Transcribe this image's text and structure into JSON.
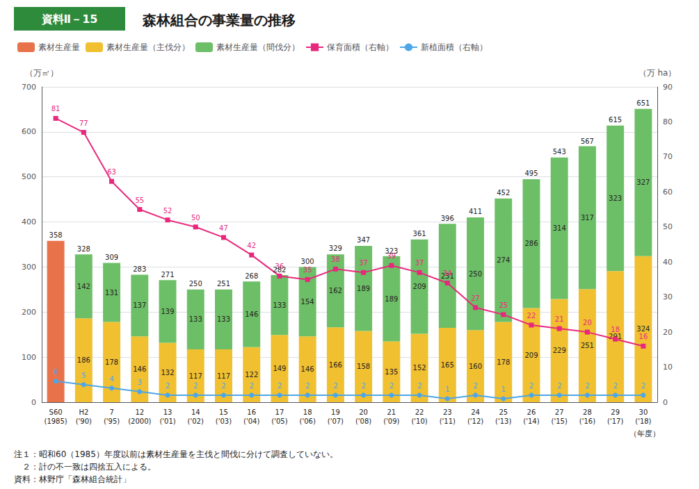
{
  "chart_data": {
    "type": "bar",
    "title": "森林組合の事業量の推移",
    "badge": "資料Ⅱ－15",
    "categories": [
      "S60\n(1985)",
      "H2\n('90)",
      "7\n('95)",
      "12\n(2000)",
      "13\n('01)",
      "14\n('02)",
      "15\n('03)",
      "16\n('04)",
      "17\n('05)",
      "18\n('06)",
      "19\n('07)",
      "20\n('08)",
      "21\n('09)",
      "22\n('10)",
      "23\n('11)",
      "24\n('12)",
      "25\n('13)",
      "26\n('14)",
      "27\n('15)",
      "28\n('16)",
      "29\n('17)",
      "30\n('18)"
    ],
    "xlabel": "（年度）",
    "ylabel": "（万㎥）",
    "y2label": "（万 ha）",
    "ylim": [
      0,
      700
    ],
    "yticks": [
      0,
      100,
      200,
      300,
      400,
      500,
      600,
      700
    ],
    "y2lim": [
      0,
      90
    ],
    "y2ticks": [
      0,
      10,
      20,
      30,
      40,
      50,
      60,
      70,
      80,
      90
    ],
    "grid": true,
    "legend": "upper left",
    "stacked": true,
    "series": [
      {
        "name": "素材生産量",
        "type": "bar",
        "color": "#e8734a",
        "data_labels": false,
        "values": [
          358,
          0,
          0,
          0,
          0,
          0,
          0,
          0,
          0,
          0,
          0,
          0,
          0,
          0,
          0,
          0,
          0,
          0,
          0,
          0,
          0,
          0
        ]
      },
      {
        "name": "素材生産量（主伐分）",
        "type": "bar",
        "color": "#f0c030",
        "data_labels": true,
        "values": [
          0,
          186,
          178,
          146,
          132,
          117,
          117,
          122,
          149,
          146,
          166,
          158,
          135,
          152,
          165,
          160,
          178,
          209,
          229,
          251,
          291,
          324
        ]
      },
      {
        "name": "素材生産量（間伐分）",
        "type": "bar",
        "color": "#6dbf67",
        "data_labels": true,
        "values": [
          0,
          142,
          131,
          137,
          139,
          133,
          133,
          146,
          133,
          154,
          162,
          189,
          189,
          209,
          231,
          250,
          274,
          286,
          314,
          317,
          323,
          327
        ]
      },
      {
        "name": "保育面積（右軸）",
        "type": "line",
        "axis": "y2",
        "marker": "square",
        "color": "#e8287d",
        "data_labels": true,
        "values": [
          81,
          77,
          63,
          55,
          52,
          50,
          47,
          42,
          36,
          35,
          38,
          37,
          39,
          37,
          34,
          27,
          25,
          22,
          21,
          20,
          18,
          16
        ]
      },
      {
        "name": "新植面積（右軸）",
        "type": "line",
        "axis": "y2",
        "marker": "circle",
        "color": "#4da6e8",
        "data_labels": true,
        "values": [
          6,
          5,
          4,
          3,
          2,
          2,
          2,
          2,
          2,
          2,
          2,
          2,
          2,
          2,
          1,
          2,
          1,
          2,
          2,
          2,
          2,
          2
        ]
      }
    ],
    "totals": [
      358,
      328,
      309,
      283,
      271,
      250,
      251,
      268,
      282,
      300,
      329,
      347,
      323,
      361,
      396,
      411,
      452,
      495,
      543,
      567,
      615,
      651
    ],
    "notes": [
      "注１：昭和60（1985）年度以前は素材生産量を主伐と間伐に分けて調査していない。",
      "　２：計の不一致は四捨五入による。",
      "資料：林野庁「森林組合統計」"
    ]
  }
}
